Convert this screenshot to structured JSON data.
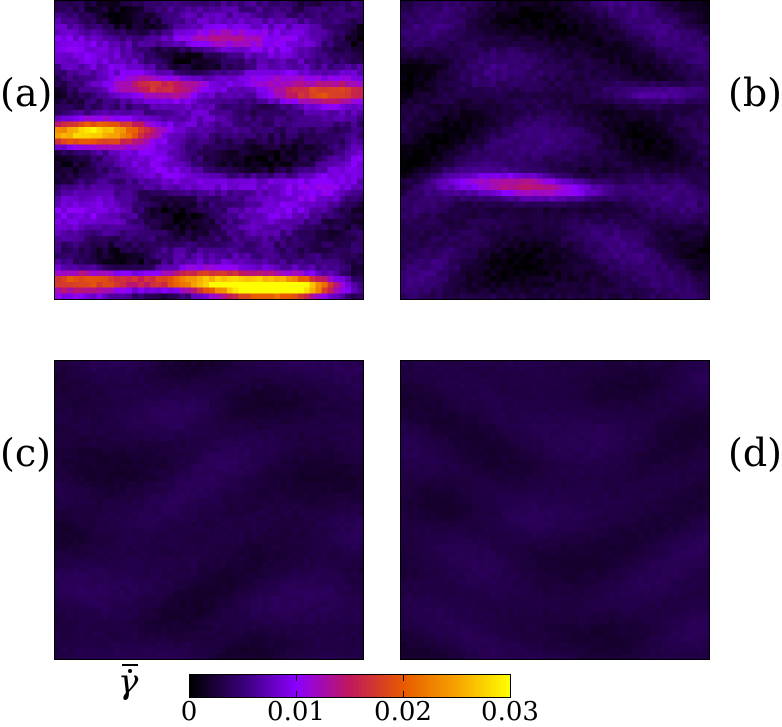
{
  "chart_data": {
    "type": "heatmap",
    "panels": [
      {
        "label": "(a)",
        "grid": [
          52,
          52
        ],
        "intensity_scale": 1.0,
        "hotspots": [
          [
            0.72,
            0.95,
            1.0
          ],
          [
            0.42,
            0.93,
            0.55
          ],
          [
            0.1,
            0.93,
            0.45
          ],
          [
            0.12,
            0.42,
            0.55
          ],
          [
            0.05,
            0.45,
            0.45
          ],
          [
            0.82,
            0.3,
            0.4
          ],
          [
            0.35,
            0.28,
            0.3
          ],
          [
            0.65,
            0.25,
            0.25
          ],
          [
            0.42,
            0.12,
            0.25
          ],
          [
            0.6,
            0.6,
            0.2
          ]
        ]
      },
      {
        "label": "(b)",
        "grid": [
          52,
          52
        ],
        "intensity_scale": 0.55,
        "hotspots": [
          [
            0.35,
            0.6,
            0.3
          ],
          [
            0.5,
            0.63,
            0.3
          ],
          [
            0.85,
            0.3,
            0.15
          ]
        ]
      },
      {
        "label": "(c)",
        "grid": [
          52,
          52
        ],
        "intensity_scale": 0.3,
        "hotspots": []
      },
      {
        "label": "(d)",
        "grid": [
          52,
          52
        ],
        "intensity_scale": 0.25,
        "hotspots": []
      }
    ],
    "colorbar": {
      "label": "γ̄̇",
      "range": [
        0,
        0.03
      ],
      "ticks": [
        "0",
        "0.01",
        "0.02",
        "0.03"
      ],
      "tick_values": [
        0,
        0.01,
        0.02,
        0.03
      ],
      "colors": [
        "#000000",
        "#3a007a",
        "#8b00ff",
        "#c1185c",
        "#e85a00",
        "#f6a300",
        "#ffff00"
      ]
    }
  }
}
